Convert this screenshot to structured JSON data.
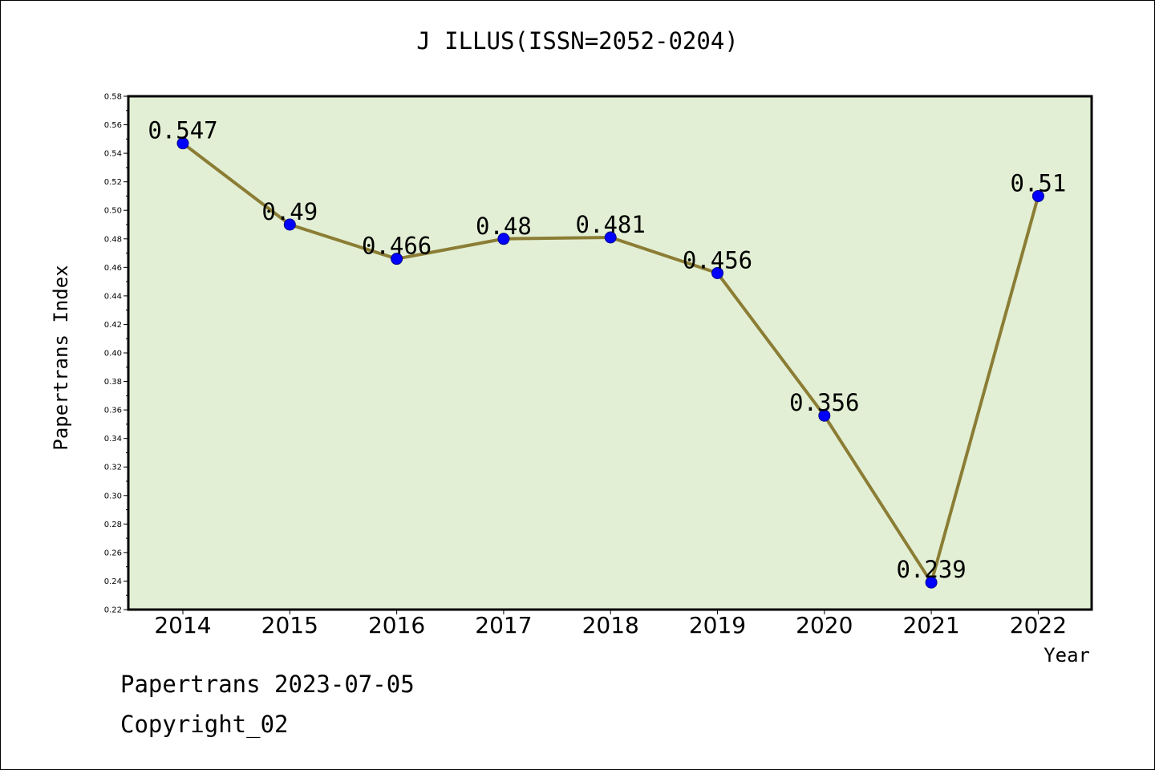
{
  "chart_data": {
    "type": "line",
    "title": "J ILLUS(ISSN=2052-0204)",
    "xlabel": "Year",
    "ylabel": "Papertrans Index",
    "categories": [
      "2014",
      "2015",
      "2016",
      "2017",
      "2018",
      "2019",
      "2020",
      "2021",
      "2022"
    ],
    "values": [
      0.547,
      0.49,
      0.466,
      0.48,
      0.481,
      0.456,
      0.356,
      0.239,
      0.51
    ],
    "data_labels": [
      "0.547",
      "0.49",
      "0.466",
      "0.48",
      "0.481",
      "0.456",
      "0.356",
      "0.239",
      "0.51"
    ],
    "ylim": [
      0.22,
      0.58
    ],
    "yticks": [
      "0.22",
      "0.24",
      "0.26",
      "0.28",
      "0.30",
      "0.32",
      "0.34",
      "0.36",
      "0.38",
      "0.40",
      "0.42",
      "0.44",
      "0.46",
      "0.48",
      "0.50",
      "0.52",
      "0.54",
      "0.56",
      "0.58"
    ],
    "grid": false,
    "legend": "none",
    "colors": {
      "plot_background": "#e2efd4",
      "line": "#8b7d35",
      "marker": "#0000ff"
    }
  },
  "footer": {
    "date_text": "Papertrans 2023-07-05",
    "copyright": "Copyright_02"
  }
}
